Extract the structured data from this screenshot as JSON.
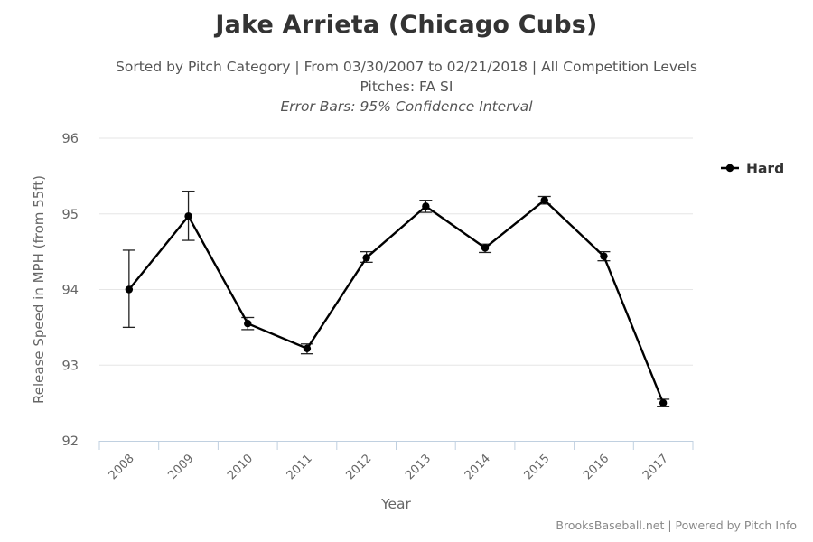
{
  "header": {
    "title": "Jake Arrieta (Chicago Cubs)",
    "subtitle_line1": "Sorted by Pitch Category | From 03/30/2007 to 02/21/2018 | All Competition Levels",
    "subtitle_line2": "Pitches: FA SI",
    "subtitle_line3": "Error Bars: 95% Confidence Interval"
  },
  "credits": "BrooksBaseball.net | Powered by Pitch Info",
  "chart_data": {
    "type": "line",
    "title": "Jake Arrieta (Chicago Cubs)",
    "xlabel": "Year",
    "ylabel": "Release Speed in MPH (from 55ft)",
    "ylim": [
      92,
      96
    ],
    "yticks": [
      92,
      93,
      94,
      95,
      96
    ],
    "grid": true,
    "legend_position": "top-right",
    "categories": [
      "2008",
      "2009",
      "2010",
      "2011",
      "2012",
      "2013",
      "2014",
      "2015",
      "2016",
      "2017"
    ],
    "series": [
      {
        "name": "Hard",
        "color": "#000000",
        "values": [
          94.0,
          94.97,
          93.55,
          93.22,
          94.42,
          95.1,
          94.55,
          95.18,
          94.44,
          92.5
        ],
        "error_low": [
          93.5,
          94.65,
          93.47,
          93.15,
          94.36,
          95.02,
          94.49,
          95.13,
          94.38,
          92.45
        ],
        "error_high": [
          94.52,
          95.3,
          93.63,
          93.28,
          94.5,
          95.18,
          94.6,
          95.23,
          94.5,
          92.55
        ]
      }
    ]
  }
}
